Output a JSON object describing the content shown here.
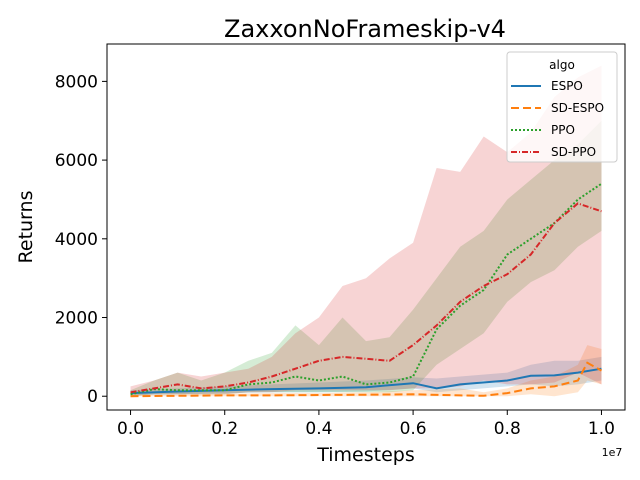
{
  "chart_data": {
    "type": "line",
    "title": "ZaxxonNoFrameskip-v4",
    "xlabel": "Timesteps",
    "ylabel": "Returns",
    "x_multiplier_label": "1e7",
    "xlim": [
      -0.05,
      1.05
    ],
    "ylim": [
      -350,
      8950
    ],
    "xticks": [
      0.0,
      0.2,
      0.4,
      0.6,
      0.8,
      1.0
    ],
    "xtick_labels": [
      "0.0",
      "0.2",
      "0.4",
      "0.6",
      "0.8",
      "1.0"
    ],
    "yticks": [
      0,
      2000,
      4000,
      6000,
      8000
    ],
    "ytick_labels": [
      "0",
      "2000",
      "4000",
      "6000",
      "8000"
    ],
    "grid": false,
    "legend": {
      "title": "algo",
      "placement": "top-right"
    },
    "series": [
      {
        "name": "ESPO",
        "color": "#1f77b4",
        "dash": "solid",
        "x": [
          0.0,
          0.1,
          0.2,
          0.3,
          0.4,
          0.5,
          0.6,
          0.65,
          0.7,
          0.8,
          0.85,
          0.9,
          0.95,
          1.0
        ],
        "y": [
          80,
          120,
          150,
          180,
          200,
          230,
          330,
          200,
          300,
          400,
          520,
          530,
          600,
          700
        ],
        "upper": [
          150,
          200,
          250,
          300,
          350,
          400,
          480,
          450,
          500,
          600,
          800,
          900,
          900,
          1000
        ],
        "lower": [
          20,
          50,
          80,
          100,
          100,
          120,
          200,
          100,
          150,
          250,
          300,
          250,
          300,
          400
        ]
      },
      {
        "name": "SD-ESPO",
        "color": "#ff7f0e",
        "dash": "8,4",
        "x": [
          0.0,
          0.1,
          0.2,
          0.3,
          0.4,
          0.5,
          0.6,
          0.7,
          0.75,
          0.8,
          0.85,
          0.9,
          0.95,
          0.97,
          1.0
        ],
        "y": [
          0,
          10,
          20,
          20,
          30,
          40,
          50,
          20,
          10,
          80,
          200,
          250,
          400,
          850,
          650
        ],
        "upper": [
          30,
          50,
          60,
          80,
          80,
          100,
          150,
          200,
          100,
          200,
          400,
          500,
          800,
          1300,
          1200
        ],
        "lower": [
          0,
          0,
          0,
          0,
          0,
          0,
          0,
          0,
          0,
          0,
          50,
          0,
          100,
          400,
          300
        ]
      },
      {
        "name": "PPO",
        "color": "#2ca02c",
        "dash": "2,2",
        "x": [
          0.0,
          0.05,
          0.1,
          0.15,
          0.2,
          0.25,
          0.3,
          0.35,
          0.4,
          0.45,
          0.5,
          0.55,
          0.6,
          0.65,
          0.7,
          0.75,
          0.8,
          0.85,
          0.9,
          0.95,
          1.0
        ],
        "y": [
          50,
          180,
          150,
          150,
          150,
          300,
          350,
          500,
          400,
          500,
          300,
          350,
          500,
          1700,
          2300,
          2700,
          3600,
          4000,
          4400,
          5000,
          5400
        ],
        "upper": [
          150,
          400,
          600,
          400,
          600,
          900,
          1100,
          1800,
          1300,
          2000,
          1400,
          1500,
          2200,
          3000,
          3800,
          4200,
          5000,
          5500,
          6000,
          6400,
          7000
        ],
        "lower": [
          0,
          50,
          50,
          50,
          50,
          100,
          100,
          100,
          100,
          100,
          100,
          100,
          150,
          800,
          1200,
          1600,
          2400,
          2900,
          3200,
          3800,
          4200
        ]
      },
      {
        "name": "SD-PPO",
        "color": "#d62728",
        "dash": "6,2,1,2",
        "x": [
          0.0,
          0.05,
          0.1,
          0.15,
          0.2,
          0.25,
          0.3,
          0.35,
          0.4,
          0.45,
          0.5,
          0.55,
          0.6,
          0.65,
          0.7,
          0.75,
          0.8,
          0.85,
          0.9,
          0.95,
          1.0
        ],
        "y": [
          100,
          200,
          300,
          200,
          250,
          350,
          500,
          700,
          900,
          1000,
          950,
          900,
          1300,
          1800,
          2400,
          2800,
          3100,
          3600,
          4400,
          4900,
          4700
        ],
        "upper": [
          250,
          400,
          600,
          500,
          600,
          700,
          1000,
          1600,
          2000,
          2800,
          3000,
          3500,
          3900,
          5800,
          5700,
          6600,
          6200,
          6700,
          7600,
          8100,
          8400
        ],
        "lower": [
          0,
          50,
          50,
          50,
          50,
          100,
          100,
          150,
          150,
          150,
          150,
          150,
          200,
          200,
          250,
          400,
          300,
          300,
          350,
          600,
          300
        ]
      }
    ]
  }
}
